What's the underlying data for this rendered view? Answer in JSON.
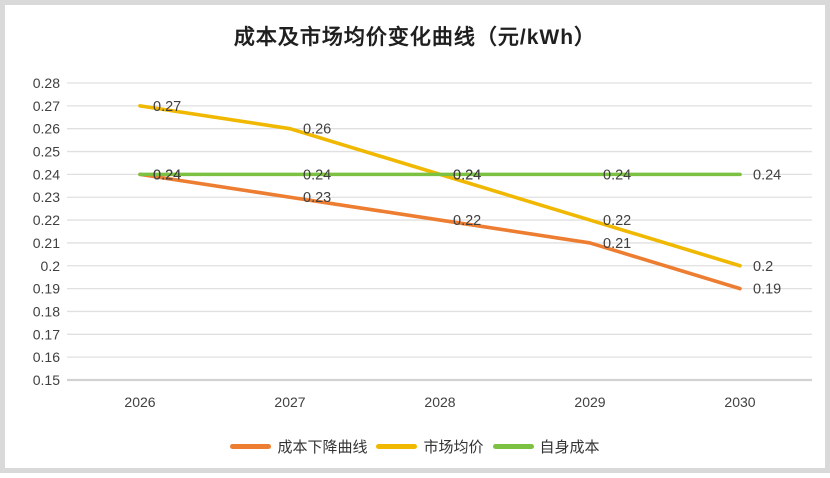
{
  "chart_data": {
    "type": "line",
    "title": "成本及市场均价变化曲线（元/kWh）",
    "categories": [
      "2026",
      "2027",
      "2028",
      "2029",
      "2030"
    ],
    "series": [
      {
        "name": "成本下降曲线",
        "color": "#ED7D31",
        "values": [
          0.24,
          0.23,
          0.22,
          0.21,
          0.19
        ],
        "labels": [
          "0.24",
          "0.23",
          "0.22",
          "0.21",
          "0.19"
        ]
      },
      {
        "name": "市场均价",
        "color": "#F0B800",
        "values": [
          0.27,
          0.26,
          0.24,
          0.22,
          0.2
        ],
        "labels": [
          "0.27",
          "0.26",
          "0.24",
          "0.22",
          "0.2"
        ]
      },
      {
        "name": "自身成本",
        "color": "#7DC142",
        "values": [
          0.24,
          0.24,
          0.24,
          0.24,
          0.24
        ],
        "labels": [
          "0.24",
          "0.24",
          "0.24",
          "0.24",
          "0.24"
        ]
      }
    ],
    "y_axis": {
      "min": 0.15,
      "max": 0.28,
      "step": 0.01,
      "ticks": [
        "0.28",
        "0.27",
        "0.26",
        "0.25",
        "0.24",
        "0.23",
        "0.22",
        "0.21",
        "0.2",
        "0.19",
        "0.18",
        "0.17",
        "0.16",
        "0.15"
      ]
    },
    "grid": true,
    "legend_position": "bottom",
    "colors": {
      "grid_line": "#e0e0e0",
      "axis_line": "#d2d2d2",
      "axis_text": "#404040",
      "data_label_text": "#404040"
    }
  }
}
